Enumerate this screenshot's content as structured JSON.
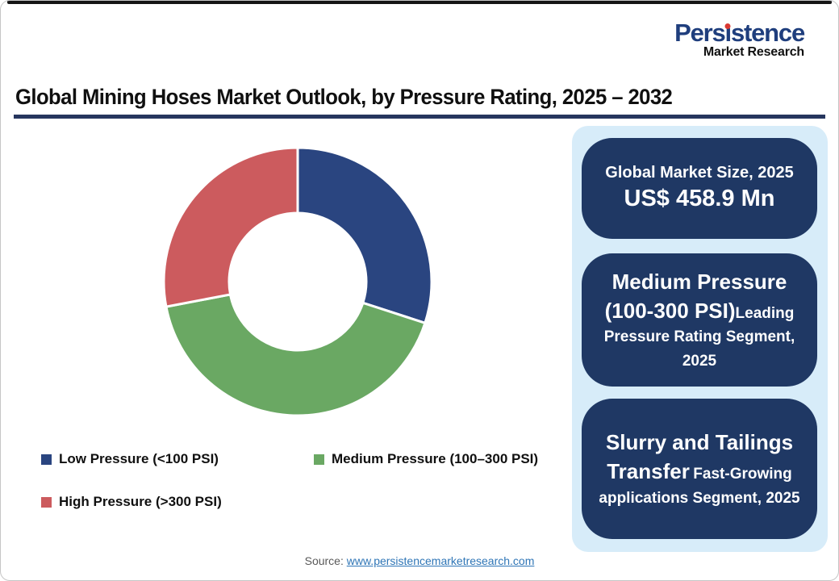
{
  "brand": {
    "name": "Persistence",
    "tagline": "Market Research",
    "name_color": "#1F3E7D",
    "tagline_color": "#111111",
    "dot_color": "#DA3832"
  },
  "header": {
    "title": "Global Mining Hoses Market Outlook, by Pressure Rating, 2025 – 2032",
    "underline_color": "#26365E"
  },
  "chart_data": {
    "type": "pie",
    "variant": "donut",
    "title": "Global Mining Hoses Market Outlook, by Pressure Rating, 2025 – 2032",
    "categories": [
      "Low Pressure (<100 PSI)",
      "Medium Pressure (100–300 PSI)",
      "High Pressure (>300 PSI)"
    ],
    "values": [
      30,
      42,
      28
    ],
    "values_unit": "percent share, estimated from arc angles (no numeric labels shown)",
    "colors": [
      "#2A4580",
      "#6AA863",
      "#CC5B5E"
    ],
    "start_angle_deg": 0,
    "direction": "clockwise",
    "inner_radius_ratio": 0.51,
    "slice_gap_color": "#FFFFFF",
    "legend_position": "bottom"
  },
  "legend": {
    "items": [
      {
        "label": "Low Pressure (<100 PSI)",
        "color": "#2A4580"
      },
      {
        "label": "Medium Pressure (100–300 PSI)",
        "color": "#6AA863"
      },
      {
        "label": "High Pressure (>300 PSI)",
        "color": "#CC5B5E"
      }
    ]
  },
  "panel": {
    "background": "#D7ECF9",
    "card_background": "#1F3864",
    "cards": [
      {
        "line1": "Global Market Size, 2025",
        "line2": "US$ 458.9 Mn"
      },
      {
        "big": "Medium Pressure (100-300 PSI)",
        "small": "Leading Pressure Rating Segment, 2025"
      },
      {
        "big": "Slurry and Tailings Transfer",
        "small": "Fast-Growing applications  Segment, 2025"
      }
    ]
  },
  "source": {
    "label": "Source:",
    "link_text": "www.persistencemarketresearch.com",
    "link_color": "#2E75B6"
  }
}
